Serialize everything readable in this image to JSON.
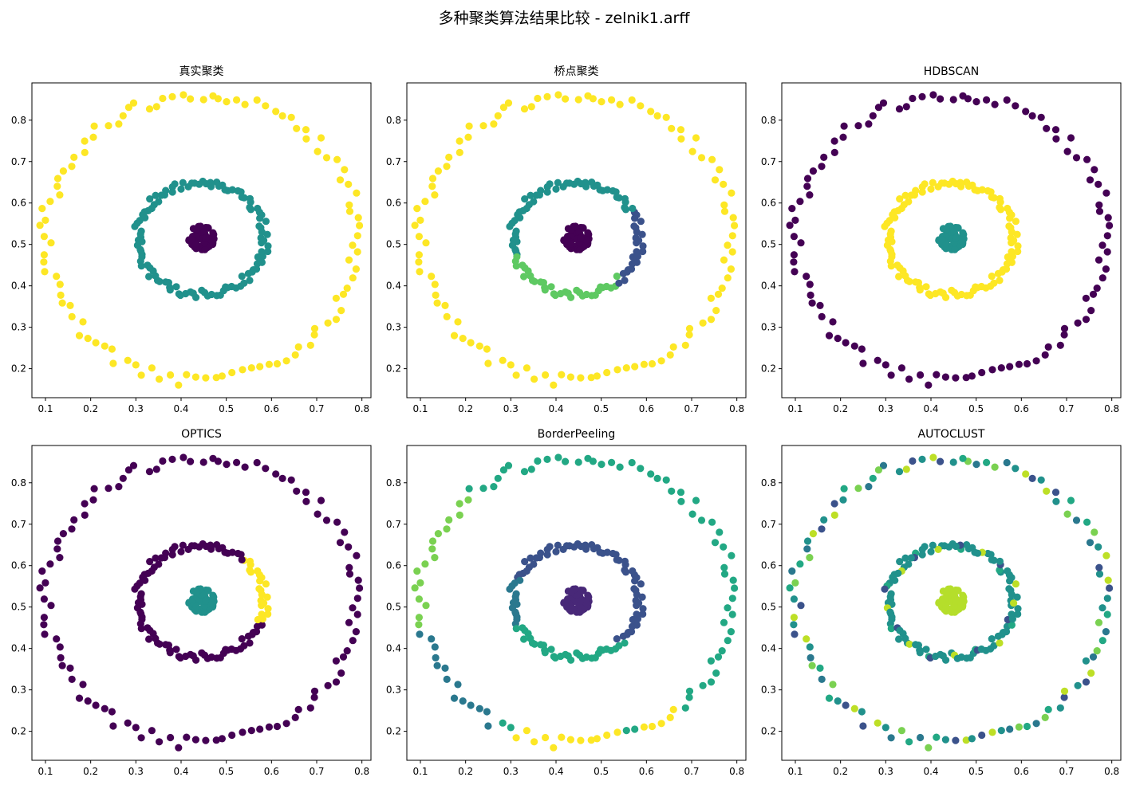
{
  "suptitle": "多种聚类算法结果比较 - zelnik1.arff",
  "palette": {
    "viridis": [
      "#440154",
      "#3b528b",
      "#21918c",
      "#5ec962",
      "#fde725"
    ]
  },
  "chart_data": [
    {
      "type": "scatter",
      "title": "真实聚类",
      "xlim": [
        0.07,
        0.82
      ],
      "ylim": [
        0.13,
        0.89
      ],
      "xticks": [
        0.1,
        0.2,
        0.3,
        0.4,
        0.5,
        0.6,
        0.7,
        0.8
      ],
      "yticks": [
        0.2,
        0.3,
        0.4,
        0.5,
        0.6,
        0.7,
        0.8
      ],
      "clusters": {
        "outer": [
          "#fde725"
        ],
        "inner": [
          "#21918c"
        ],
        "center": [
          "#440154"
        ]
      }
    },
    {
      "type": "scatter",
      "title": "桥点聚类",
      "xlim": [
        0.07,
        0.82
      ],
      "ylim": [
        0.13,
        0.89
      ],
      "xticks": [
        0.1,
        0.2,
        0.3,
        0.4,
        0.5,
        0.6,
        0.7,
        0.8
      ],
      "yticks": [
        0.2,
        0.3,
        0.4,
        0.5,
        0.6,
        0.7,
        0.8
      ],
      "clusters": {
        "outer": [
          "#fde725"
        ],
        "inner": [
          "#21918c",
          "#3b528b",
          "#5ec962"
        ],
        "center": [
          "#440154"
        ]
      }
    },
    {
      "type": "scatter",
      "title": "HDBSCAN",
      "xlim": [
        0.07,
        0.82
      ],
      "ylim": [
        0.13,
        0.89
      ],
      "xticks": [
        0.1,
        0.2,
        0.3,
        0.4,
        0.5,
        0.6,
        0.7,
        0.8
      ],
      "yticks": [
        0.2,
        0.3,
        0.4,
        0.5,
        0.6,
        0.7,
        0.8
      ],
      "clusters": {
        "outer": [
          "#440154"
        ],
        "inner": [
          "#fde725"
        ],
        "center": [
          "#21918c"
        ]
      }
    },
    {
      "type": "scatter",
      "title": "OPTICS",
      "xlim": [
        0.07,
        0.82
      ],
      "ylim": [
        0.13,
        0.89
      ],
      "xticks": [
        0.1,
        0.2,
        0.3,
        0.4,
        0.5,
        0.6,
        0.7,
        0.8
      ],
      "yticks": [
        0.2,
        0.3,
        0.4,
        0.5,
        0.6,
        0.7,
        0.8
      ],
      "clusters": {
        "outer": [
          "#440154"
        ],
        "inner": [
          "#440154",
          "#fde725"
        ],
        "center": [
          "#21918c"
        ]
      }
    },
    {
      "type": "scatter",
      "title": "BorderPeeling",
      "xlim": [
        0.07,
        0.82
      ],
      "ylim": [
        0.13,
        0.89
      ],
      "xticks": [
        0.1,
        0.2,
        0.3,
        0.4,
        0.5,
        0.6,
        0.7,
        0.8
      ],
      "yticks": [
        0.2,
        0.3,
        0.4,
        0.5,
        0.6,
        0.7,
        0.8
      ],
      "clusters": {
        "outer": [
          "#22a884",
          "#2a788e",
          "#7ad151",
          "#fde725"
        ],
        "inner": [
          "#3b528b",
          "#2a788e",
          "#22a884"
        ],
        "center": [
          "#482878"
        ]
      }
    },
    {
      "type": "scatter",
      "title": "AUTOCLUST",
      "xlim": [
        0.07,
        0.82
      ],
      "ylim": [
        0.13,
        0.89
      ],
      "xticks": [
        0.1,
        0.2,
        0.3,
        0.4,
        0.5,
        0.6,
        0.7,
        0.8
      ],
      "yticks": [
        0.2,
        0.3,
        0.4,
        0.5,
        0.6,
        0.7,
        0.8
      ],
      "clusters": {
        "outer": [
          "#21918c",
          "#2a788e",
          "#3b528b",
          "#7ad151",
          "#bddf26",
          "#22a884"
        ],
        "inner": [
          "#21918c",
          "#22a884",
          "#bddf26",
          "#3b528b"
        ],
        "center": [
          "#b5de2b"
        ]
      }
    }
  ]
}
